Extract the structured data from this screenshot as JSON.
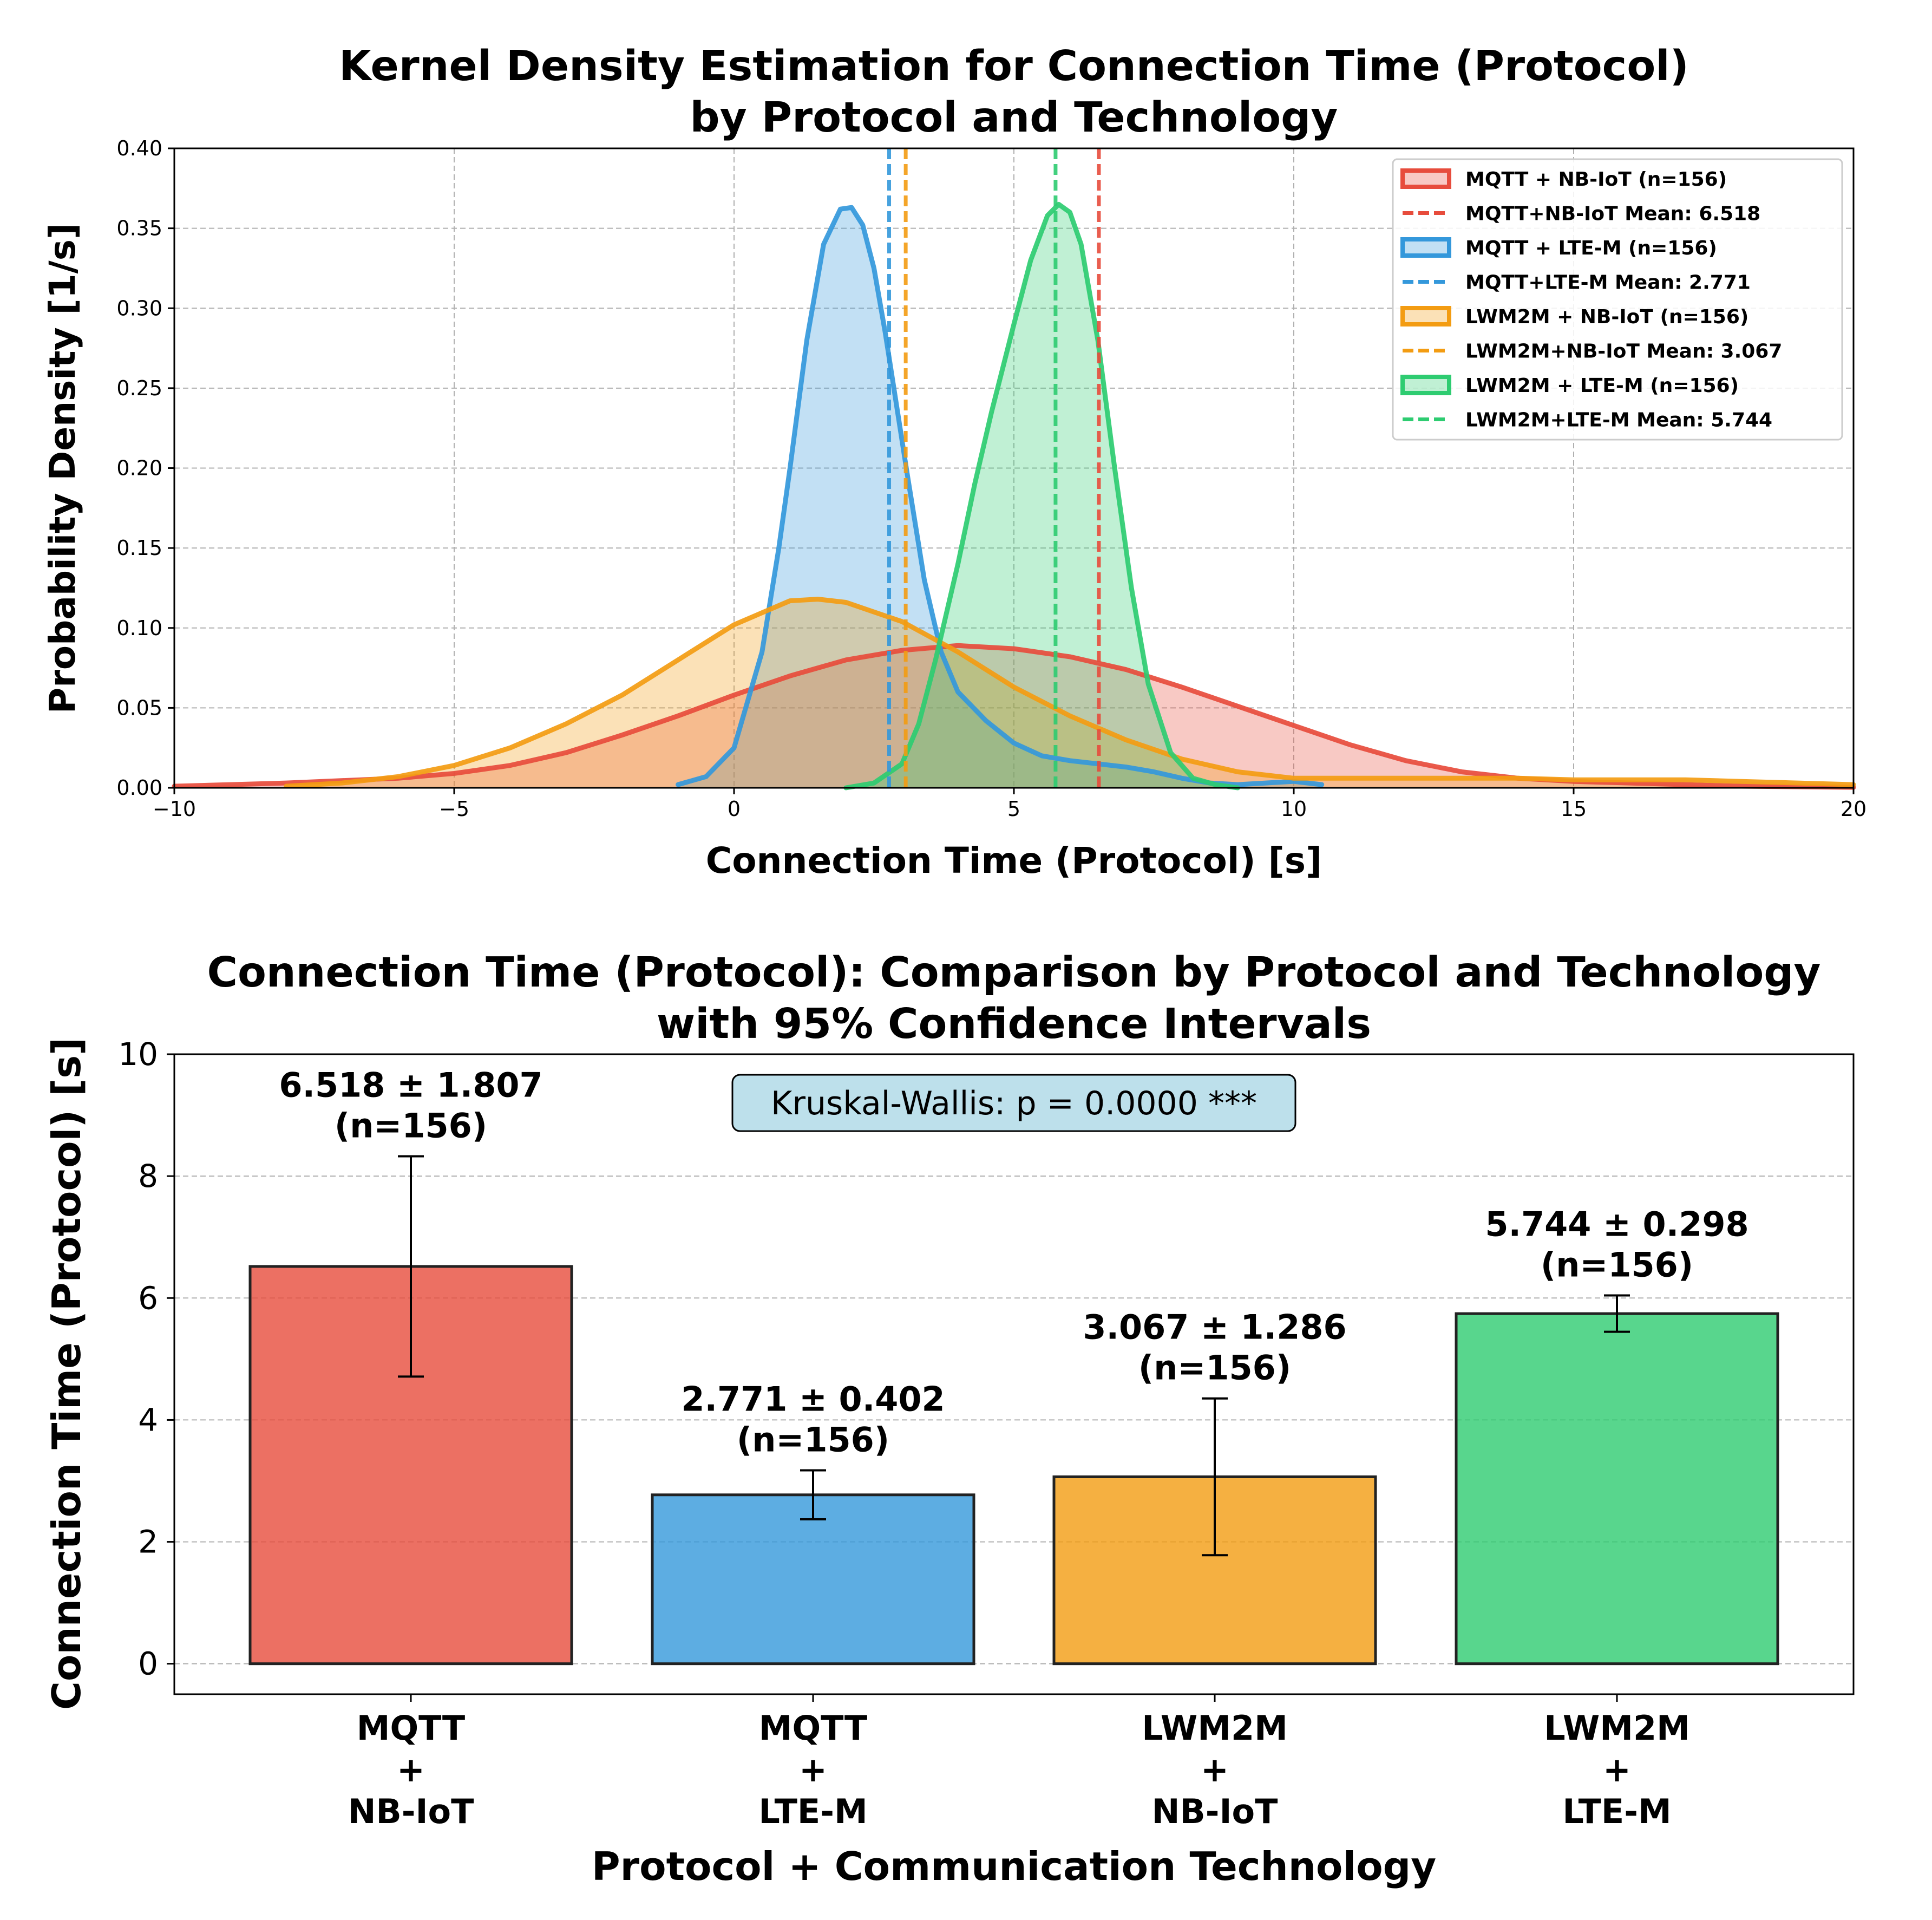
{
  "chart_data": [
    {
      "type": "area",
      "title": [
        "Kernel Density Estimation for Connection Time (Protocol)",
        "by Protocol and Technology"
      ],
      "xlabel": "Connection Time (Protocol) [s]",
      "ylabel": "Probability Density [1/s]",
      "xlim": [
        -10,
        20
      ],
      "ylim": [
        0,
        0.4
      ],
      "xticks": [
        -10,
        -5,
        0,
        5,
        10,
        15,
        20
      ],
      "xtick_labels": [
        "−10",
        "−5",
        "0",
        "5",
        "10",
        "15",
        "20"
      ],
      "yticks": [
        0,
        0.05,
        0.1,
        0.15,
        0.2,
        0.25,
        0.3,
        0.35,
        0.4
      ],
      "ytick_labels": [
        "0.00",
        "0.05",
        "0.10",
        "0.15",
        "0.20",
        "0.25",
        "0.30",
        "0.35",
        "0.40"
      ],
      "grid": true,
      "legend_position": "top-right",
      "series": [
        {
          "name": "MQTT + NB-IoT (n=156)",
          "mean_label": "MQTT+NB-IoT Mean: 6.518",
          "mean": 6.518,
          "color": "#e74c3c",
          "x": [
            -10,
            -8,
            -6,
            -5,
            -4,
            -3,
            -2,
            -1,
            0,
            1,
            2,
            3,
            4,
            5,
            6,
            7,
            8,
            9,
            10,
            11,
            12,
            13,
            14,
            15,
            16,
            17,
            18,
            20
          ],
          "y": [
            0.001,
            0.003,
            0.006,
            0.009,
            0.014,
            0.022,
            0.033,
            0.045,
            0.058,
            0.07,
            0.08,
            0.086,
            0.089,
            0.087,
            0.082,
            0.074,
            0.063,
            0.051,
            0.039,
            0.027,
            0.017,
            0.01,
            0.006,
            0.004,
            0.003,
            0.002,
            0.001,
            0.0003
          ]
        },
        {
          "name": "MQTT + LTE-M (n=156)",
          "mean_label": "MQTT+LTE-M Mean: 2.771",
          "mean": 2.771,
          "color": "#3498db",
          "x": [
            -1.0,
            -0.5,
            0,
            0.5,
            0.8,
            1.0,
            1.3,
            1.6,
            1.9,
            2.1,
            2.3,
            2.5,
            2.7,
            2.9,
            3.1,
            3.4,
            3.7,
            4.0,
            4.5,
            5.0,
            5.5,
            6.0,
            6.5,
            7.0,
            7.5,
            8.0,
            8.5,
            9.0,
            9.5,
            10.0,
            10.5
          ],
          "y": [
            0.002,
            0.007,
            0.025,
            0.085,
            0.15,
            0.2,
            0.28,
            0.34,
            0.362,
            0.363,
            0.352,
            0.325,
            0.285,
            0.24,
            0.195,
            0.13,
            0.085,
            0.06,
            0.042,
            0.028,
            0.02,
            0.017,
            0.015,
            0.013,
            0.01,
            0.006,
            0.003,
            0.002,
            0.003,
            0.004,
            0.002
          ]
        },
        {
          "name": "LWM2M + NB-IoT (n=156)",
          "mean_label": "LWM2M+NB-IoT Mean: 3.067",
          "mean": 3.067,
          "color": "#f39c12",
          "x": [
            -8,
            -7,
            -6,
            -5,
            -4,
            -3,
            -2,
            -1,
            0,
            1,
            1.5,
            2,
            3,
            4,
            5,
            6,
            7,
            8,
            9,
            10,
            11,
            12,
            13,
            14,
            15,
            16,
            17,
            18,
            19,
            20
          ],
          "y": [
            0.001,
            0.003,
            0.007,
            0.014,
            0.025,
            0.04,
            0.058,
            0.08,
            0.102,
            0.117,
            0.118,
            0.116,
            0.104,
            0.085,
            0.063,
            0.045,
            0.03,
            0.018,
            0.01,
            0.006,
            0.006,
            0.006,
            0.006,
            0.006,
            0.005,
            0.005,
            0.005,
            0.004,
            0.003,
            0.002
          ]
        },
        {
          "name": "LWM2M + LTE-M (n=156)",
          "mean_label": "LWM2M+LTE-M Mean: 5.744",
          "mean": 5.744,
          "color": "#2ecc71",
          "x": [
            2.0,
            2.5,
            3.0,
            3.3,
            3.6,
            4.0,
            4.3,
            4.6,
            5.0,
            5.3,
            5.6,
            5.8,
            6.0,
            6.2,
            6.5,
            6.8,
            7.1,
            7.4,
            7.8,
            8.2,
            8.6,
            9.0
          ],
          "y": [
            0.0,
            0.003,
            0.015,
            0.04,
            0.08,
            0.14,
            0.19,
            0.235,
            0.29,
            0.33,
            0.358,
            0.365,
            0.36,
            0.34,
            0.28,
            0.2,
            0.125,
            0.065,
            0.022,
            0.006,
            0.002,
            0.0
          ]
        }
      ]
    },
    {
      "type": "bar",
      "title": [
        "Connection Time (Protocol): Comparison by Protocol and Technology",
        "with 95% Confidence Intervals"
      ],
      "xlabel": "Protocol + Communication Technology",
      "ylabel": "Connection Time (Protocol) [s]",
      "ylim": [
        -0.5,
        10
      ],
      "yticks": [
        0,
        2,
        4,
        6,
        8,
        10
      ],
      "grid": true,
      "categories": [
        [
          "MQTT",
          "+",
          "NB-IoT"
        ],
        [
          "MQTT",
          "+",
          "LTE-M"
        ],
        [
          "LWM2M",
          "+",
          "NB-IoT"
        ],
        [
          "LWM2M",
          "+",
          "LTE-M"
        ]
      ],
      "values": [
        6.518,
        2.771,
        3.067,
        5.744
      ],
      "errors": [
        1.807,
        0.402,
        1.286,
        0.298
      ],
      "colors": [
        "#e74c3c",
        "#3498db",
        "#f39c12",
        "#2ecc71"
      ],
      "data_labels": [
        [
          "6.518 ± 1.807",
          "(n=156)"
        ],
        [
          "2.771 ± 0.402",
          "(n=156)"
        ],
        [
          "3.067 ± 1.286",
          "(n=156)"
        ],
        [
          "5.744 ± 0.298",
          "(n=156)"
        ]
      ],
      "annotation": "Kruskal-Wallis: p = 0.0000 ***"
    }
  ]
}
